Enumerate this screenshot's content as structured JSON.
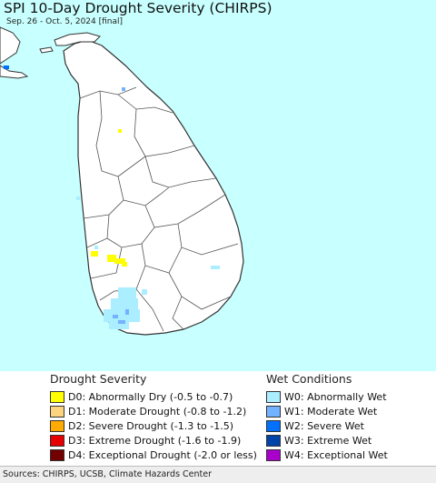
{
  "map": {
    "title": "SPI 10-Day Drought Severity (CHIRPS)",
    "subtitle": "Sep. 26 - Oct. 5, 2024 [final]",
    "ocean_color": "#c8ffff",
    "land_color": "#ffffff",
    "boundary_color": "#333333"
  },
  "legend": {
    "drought": {
      "heading": "Drought Severity",
      "items": [
        {
          "label": "D0: Abnormally Dry (-0.5 to -0.7)",
          "color": "#ffff00"
        },
        {
          "label": "D1: Moderate Drought (-0.8 to -1.2)",
          "color": "#fcd37f"
        },
        {
          "label": "D2: Severe Drought (-1.3 to -1.5)",
          "color": "#ffaa00"
        },
        {
          "label": "D3: Extreme Drought (-1.6 to -1.9)",
          "color": "#e60000"
        },
        {
          "label": "D4: Exceptional Drought (-2.0 or less)",
          "color": "#730000"
        }
      ]
    },
    "wet": {
      "heading": "Wet Conditions",
      "items": [
        {
          "label": "W0: Abnormally Wet",
          "color": "#aaeeff"
        },
        {
          "label": "W1: Moderate Wet",
          "color": "#73b2ff"
        },
        {
          "label": "W2: Severe Wet",
          "color": "#0070ff"
        },
        {
          "label": "W3: Extreme Wet",
          "color": "#0044aa"
        },
        {
          "label": "W4: Exceptional Wet",
          "color": "#aa00cc"
        }
      ]
    }
  },
  "footer": {
    "source": "Sources: CHIRPS, UCSB, Climate Hazards Center"
  }
}
